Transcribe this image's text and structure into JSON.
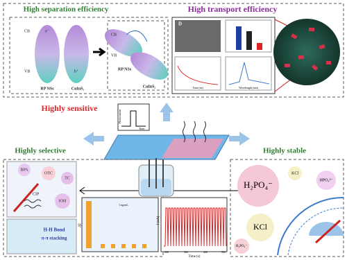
{
  "top": {
    "separation_title": "High separation efficiency",
    "transport_title": "High transport efficiency",
    "band": {
      "cb": "CB",
      "vb": "VB",
      "electron": "e⁻",
      "hole": "h⁺",
      "rp": "RP NSs",
      "cuins": "CuInS₂"
    },
    "inset_label": "D",
    "decay_x": "Time (ns)",
    "decay_y": "Intensity (a.u.)",
    "pl_x": "Wavelength (nm)",
    "pl_y": "PL Intensity (a.u.)"
  },
  "middle": {
    "sensitive": "Highly sensitive",
    "photocurrent": "Photocurrent",
    "time": "Time"
  },
  "selective": {
    "title": "Highly selective",
    "analytes": [
      "BPA",
      "OTC",
      "TC",
      "IOH",
      "CIP"
    ],
    "bond": "H-H Bond",
    "stacking": "π-π stacking",
    "bar_y": "ΔI",
    "bar_note": "1 ng/mL"
  },
  "stable": {
    "title": "Highly stable",
    "ions": [
      "H₂PO₄⁻",
      "KCl",
      "HPO₄²⁻",
      "KCl",
      "H₂PO₄⁻"
    ],
    "current_y": "I (nA)",
    "current_x": "Time (s)",
    "current_ticks": [
      "200",
      "300",
      "400",
      "500"
    ]
  }
}
